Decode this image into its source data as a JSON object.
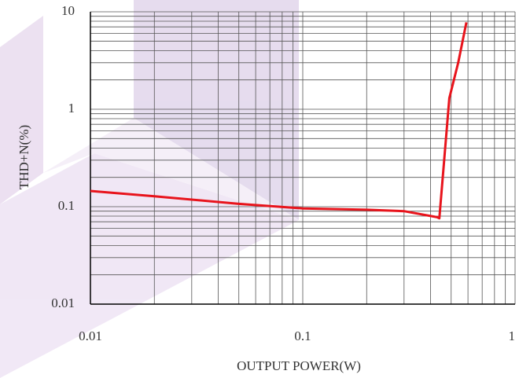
{
  "chart_data": {
    "type": "line",
    "x_label": "OUTPUT POWER(W)",
    "y_label": "THD+N(%)",
    "x": [
      0.01,
      0.02,
      0.05,
      0.1,
      0.2,
      0.3,
      0.43,
      0.44,
      0.49,
      0.54,
      0.59
    ],
    "values": [
      0.145,
      0.128,
      0.107,
      0.096,
      0.093,
      0.09,
      0.078,
      0.076,
      1.3,
      3.0,
      7.8
    ],
    "color": "#e8141c",
    "xscale": "log",
    "yscale": "log",
    "xlim": [
      0.01,
      1
    ],
    "ylim": [
      0.01,
      10
    ],
    "xticks": [
      0.01,
      0.1,
      1
    ],
    "yticks": [
      0.01,
      0.1,
      1,
      10
    ],
    "grid": true
  }
}
